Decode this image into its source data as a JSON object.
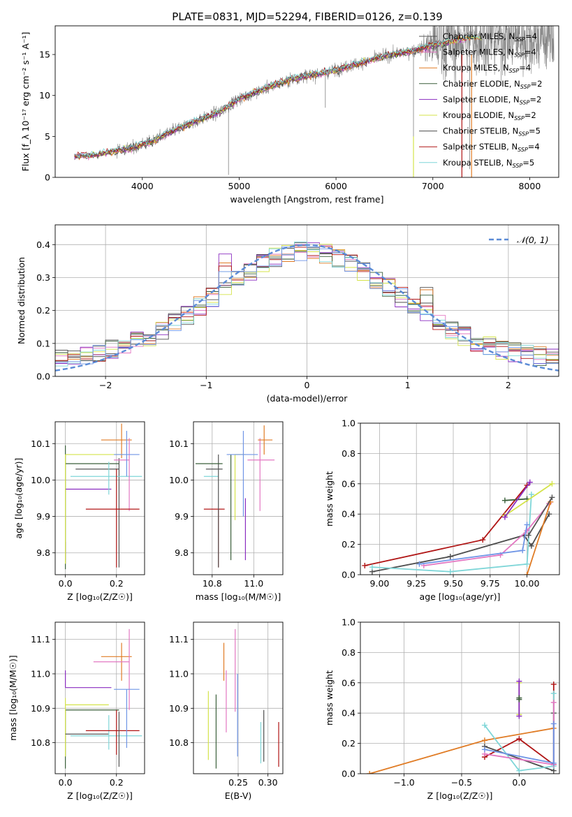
{
  "title": "PLATE=0831, MJD=52294, FIBERID=0126, z=0.139",
  "colors": {
    "Chabrier MILES": "#555555",
    "Salpeter MILES": "#e377c2",
    "Kroupa MILES": "#e07b24",
    "Chabrier ELODIE": "#3a5f3a",
    "Salpeter ELODIE": "#8a2cc0",
    "Kroupa ELODIE": "#d4e34a",
    "Chabrier STELIB": "#4d4d4d",
    "Salpeter STELIB": "#b01515",
    "Kroupa STELIB": "#7fd6d8",
    "blue": "#6f95e6",
    "data": "#808080",
    "gauss": "#5b8bd6"
  },
  "chart_data": [
    {
      "id": "spectrum",
      "type": "line",
      "xlabel": "wavelength [Angstrom, rest frame]",
      "ylabel": "Flux [f_λ 10⁻¹⁷ erg cm⁻² s⁻¹ A⁻¹]",
      "xlim": [
        3100,
        8300
      ],
      "ylim": [
        0,
        18.5
      ],
      "xticks": [
        4000,
        5000,
        6000,
        7000,
        8000
      ],
      "yticks": [
        0,
        5,
        10,
        15
      ],
      "grid": false,
      "legend_position": "top-right",
      "legend": [
        {
          "name": "Chabrier MILES",
          "label": "Chabrier MILES, N",
          "sub": "SSP",
          "value": "=4"
        },
        {
          "name": "Salpeter MILES",
          "label": "Salpeter MILES, N",
          "sub": "SSP",
          "value": "=4"
        },
        {
          "name": "Kroupa MILES",
          "label": "Kroupa MILES, N",
          "sub": "SSP",
          "value": "=4"
        },
        {
          "name": "Chabrier ELODIE",
          "label": "Chabrier ELODIE, N",
          "sub": "SSP",
          "value": "=2"
        },
        {
          "name": "Salpeter ELODIE",
          "label": "Salpeter ELODIE, N",
          "sub": "SSP",
          "value": "=2"
        },
        {
          "name": "Kroupa ELODIE",
          "label": "Kroupa ELODIE, N",
          "sub": "SSP",
          "value": "=2"
        },
        {
          "name": "Chabrier STELIB",
          "label": "Chabrier STELIB, N",
          "sub": "SSP",
          "value": "=5"
        },
        {
          "name": "Salpeter STELIB",
          "label": "Salpeter STELIB, N",
          "sub": "SSP",
          "value": "=4"
        },
        {
          "name": "Kroupa STELIB",
          "label": "Kroupa STELIB, N",
          "sub": "SSP",
          "value": "=5"
        }
      ],
      "continuum": {
        "x": [
          3300,
          3500,
          3700,
          3900,
          4100,
          4300,
          4500,
          4800,
          5000,
          5300,
          5600,
          5900,
          6200,
          6500,
          6800,
          7100,
          7400
        ],
        "y": [
          2.6,
          2.7,
          3.2,
          3.6,
          4.4,
          5.6,
          6.6,
          8.0,
          9.6,
          11.0,
          12.2,
          12.8,
          13.8,
          14.8,
          15.5,
          16.4,
          17.0
        ]
      },
      "data_series": "observed spectrum (gray)",
      "models_start": 3300
    },
    {
      "id": "residuals",
      "type": "histogram",
      "xlabel": "(data-model)/error",
      "ylabel": "Normed distribution",
      "xlim": [
        -2.5,
        2.5
      ],
      "ylim": [
        0,
        0.46
      ],
      "xticks": [
        -2,
        -1,
        0,
        1,
        2
      ],
      "yticks": [
        0.0,
        0.1,
        0.2,
        0.3,
        0.4
      ],
      "grid": true,
      "bins": 40,
      "gauss_label": "𝒩(0, 1)",
      "legend_position": "top-right"
    },
    {
      "id": "age-vs-Z",
      "type": "errorbar",
      "xlabel": "Z [log₁₀(Z/Z☉)]",
      "ylabel": "age  [log₁₀(age/yr)]",
      "xlim": [
        -0.04,
        0.31
      ],
      "ylim": [
        9.74,
        10.16
      ],
      "xticks": [
        0.0,
        0.2
      ],
      "yticks": [
        9.8,
        9.9,
        10.0,
        10.1
      ],
      "grid": true,
      "points": [
        {
          "c": "Salpeter ELODIE",
          "x": 0.0,
          "xerr": [
            0.0,
            0.0
          ],
          "y": 9.8,
          "yerr": [
            0.02,
            0.03
          ]
        },
        {
          "c": "Salpeter ELODIE",
          "x": 0.0,
          "xerr": [
            0.0,
            0.18
          ],
          "y": 9.975,
          "yerr": [
            0.0,
            0.0
          ]
        },
        {
          "c": "Chabrier ELODIE",
          "x": 0.0,
          "xerr": [
            0.0,
            0.21
          ],
          "y": 10.045,
          "yerr": [
            0.29,
            0.05
          ]
        },
        {
          "c": "Kroupa ELODIE",
          "x": 0.0,
          "xerr": [
            0.0,
            0.23
          ],
          "y": 10.07,
          "yerr": [
            0.3,
            0.0
          ]
        },
        {
          "c": "Chabrier MILES",
          "x": 0.21,
          "xerr": [
            0.17,
            0.0
          ],
          "y": 10.03,
          "yerr": [
            0.27,
            0.03
          ]
        },
        {
          "c": "Kroupa STELIB",
          "x": 0.17,
          "xerr": [
            0.15,
            0.13
          ],
          "y": 10.01,
          "yerr": [
            0.05,
            0.04
          ]
        },
        {
          "c": "Kroupa MILES",
          "x": 0.22,
          "xerr": [
            0.08,
            0.04
          ],
          "y": 10.11,
          "yerr": [
            0.05,
            0.045
          ]
        },
        {
          "c": "Salpeter MILES",
          "x": 0.25,
          "xerr": [
            0.06,
            0.0
          ],
          "y": 10.055,
          "yerr": [
            0.14,
            0.06
          ]
        },
        {
          "c": "blue",
          "x": 0.24,
          "xerr": [
            0.05,
            0.05
          ],
          "y": 10.07,
          "yerr": [
            0.06,
            0.065
          ]
        },
        {
          "c": "Salpeter STELIB",
          "x": 0.2,
          "xerr": [
            0.12,
            0.09
          ],
          "y": 9.92,
          "yerr": [
            0.16,
            0.11
          ]
        }
      ]
    },
    {
      "id": "age-vs-mass",
      "type": "errorbar",
      "xlabel": "mass [log₁₀(M/M☉)]",
      "ylabel": "",
      "xlim": [
        10.71,
        11.14
      ],
      "ylim": [
        9.74,
        10.16
      ],
      "xticks": [
        10.8,
        11.0
      ],
      "yticks": [
        9.8,
        9.9,
        10.0,
        10.1
      ],
      "grid": true,
      "points": [
        {
          "c": "Salpeter STELIB",
          "x": 10.83,
          "xerr": [
            0.07,
            0.03
          ],
          "y": 9.92,
          "yerr": [
            0.16,
            0.0
          ]
        },
        {
          "c": "Kroupa STELIB",
          "x": 10.82,
          "xerr": [
            0.06,
            0.01
          ],
          "y": 10.01,
          "yerr": [
            0.0,
            0.0
          ]
        },
        {
          "c": "Chabrier MILES",
          "x": 10.83,
          "xerr": [
            0.06,
            0.02
          ],
          "y": 10.03,
          "yerr": [
            0.27,
            0.04
          ]
        },
        {
          "c": "Chabrier ELODIE",
          "x": 10.85,
          "xerr": [
            0.13,
            0.0
          ],
          "y": 10.045,
          "yerr": [
            0.0,
            0.0
          ]
        },
        {
          "c": "Kroupa ELODIE",
          "x": 10.91,
          "xerr": [
            0.0,
            0.05
          ],
          "y": 10.07,
          "yerr": [
            0.18,
            0.0
          ]
        },
        {
          "c": "Chabrier ELODIE",
          "x": 10.89,
          "xerr": [
            0.0,
            0.0
          ],
          "y": 10.0,
          "yerr": [
            0.22,
            0.07
          ]
        },
        {
          "c": "blue",
          "x": 10.95,
          "xerr": [
            0.08,
            0.07
          ],
          "y": 10.07,
          "yerr": [
            0.17,
            0.065
          ]
        },
        {
          "c": "Salpeter ELODIE",
          "x": 10.96,
          "xerr": [
            0.0,
            0.0
          ],
          "y": 9.95,
          "yerr": [
            0.17,
            0.0
          ]
        },
        {
          "c": "Salpeter MILES",
          "x": 11.03,
          "xerr": [
            0.06,
            0.07
          ],
          "y": 10.055,
          "yerr": [
            0.14,
            0.06
          ]
        },
        {
          "c": "Kroupa MILES",
          "x": 11.05,
          "xerr": [
            0.03,
            0.04
          ],
          "y": 10.11,
          "yerr": [
            0.04,
            0.04
          ]
        }
      ]
    },
    {
      "id": "weight-vs-age",
      "type": "line",
      "xlabel": "age  [log₁₀(age/yr)]",
      "ylabel": "mass weight",
      "xlim": [
        8.87,
        10.22
      ],
      "ylim": [
        0,
        1.0
      ],
      "xticks": [
        9.0,
        9.25,
        9.5,
        9.75,
        10.0
      ],
      "yticks": [
        0.0,
        0.2,
        0.4,
        0.6,
        0.8,
        1.0
      ],
      "grid": true,
      "series": [
        {
          "c": "Salpeter STELIB",
          "x": [
            8.9,
            9.7,
            10.0
          ],
          "y": [
            0.06,
            0.23,
            0.59
          ]
        },
        {
          "c": "Chabrier STELIB",
          "x": [
            8.95,
            9.48,
            9.98,
            10.03,
            10.15
          ],
          "y": [
            0.02,
            0.12,
            0.26,
            0.19,
            0.4
          ]
        },
        {
          "c": "Kroupa STELIB",
          "x": [
            8.95,
            9.48,
            10.0,
            10.03
          ],
          "y": [
            0.05,
            0.02,
            0.07,
            0.53
          ]
        },
        {
          "c": "Salpeter MILES",
          "x": [
            9.3,
            9.82,
            10.0,
            10.15
          ],
          "y": [
            0.06,
            0.13,
            0.29,
            0.47
          ]
        },
        {
          "c": "Kroupa MILES",
          "x": [
            10.0,
            10.16
          ],
          "y": [
            0.0,
            0.48
          ]
        },
        {
          "c": "Chabrier MILES",
          "x": [
            10.01,
            10.17
          ],
          "y": [
            0.26,
            0.51
          ]
        },
        {
          "c": "Chabrier ELODIE",
          "x": [
            9.85,
            10.0
          ],
          "y": [
            0.49,
            0.5
          ]
        },
        {
          "c": "Kroupa ELODIE",
          "x": [
            9.85,
            10.17
          ],
          "y": [
            0.39,
            0.6
          ]
        },
        {
          "c": "Salpeter ELODIE",
          "x": [
            9.85,
            10.02
          ],
          "y": [
            0.38,
            0.61
          ]
        },
        {
          "c": "blue",
          "x": [
            9.27,
            9.97,
            10.0
          ],
          "y": [
            0.07,
            0.16,
            0.33
          ]
        }
      ]
    },
    {
      "id": "mass-vs-Z",
      "type": "errorbar",
      "xlabel": "Z [log₁₀(Z/Z☉)]",
      "ylabel": "mass [log₁₀(M/M☉)]",
      "xlim": [
        -0.04,
        0.31
      ],
      "ylim": [
        10.71,
        11.15
      ],
      "xticks": [
        0.0,
        0.2
      ],
      "yticks": [
        10.8,
        10.9,
        11.0,
        11.1
      ],
      "grid": true,
      "points": [
        {
          "c": "Salpeter ELODIE",
          "x": 0.0,
          "xerr": [
            0.0,
            0.18
          ],
          "y": 10.96,
          "yerr": [
            0.0,
            0.05
          ]
        },
        {
          "c": "Kroupa ELODIE",
          "x": 0.0,
          "xerr": [
            0.0,
            0.17
          ],
          "y": 10.91,
          "yerr": [
            0.0,
            0.0
          ]
        },
        {
          "c": "Chabrier ELODIE",
          "x": 0.0,
          "xerr": [
            0.0,
            0.21
          ],
          "y": 10.895,
          "yerr": [
            0.17,
            0.0
          ]
        },
        {
          "c": "Kroupa ELODIE",
          "x": 0.0,
          "xerr": [
            0.0,
            0.0
          ],
          "y": 10.85,
          "yerr": [
            0.09,
            0.08
          ]
        },
        {
          "c": "Chabrier MILES",
          "x": 0.17,
          "xerr": [
            0.17,
            0.0
          ],
          "y": 10.825,
          "yerr": [
            0.0,
            0.0
          ]
        },
        {
          "c": "Kroupa STELIB",
          "x": 0.17,
          "xerr": [
            0.15,
            0.13
          ],
          "y": 10.82,
          "yerr": [
            0.04,
            0.06
          ]
        },
        {
          "c": "Salpeter STELIB",
          "x": 0.2,
          "xerr": [
            0.12,
            0.09
          ],
          "y": 10.835,
          "yerr": [
            0.07,
            0.06
          ]
        },
        {
          "c": "Kroupa MILES",
          "x": 0.22,
          "xerr": [
            0.08,
            0.04
          ],
          "y": 11.05,
          "yerr": [
            0.07,
            0.04
          ]
        },
        {
          "c": "Salpeter MILES",
          "x": 0.25,
          "xerr": [
            0.14,
            0.0
          ],
          "y": 11.035,
          "yerr": [
            0.14,
            0.095
          ]
        },
        {
          "c": "blue",
          "x": 0.24,
          "xerr": [
            0.05,
            0.05
          ],
          "y": 10.955,
          "yerr": [
            0.17,
            0.0
          ]
        },
        {
          "c": "Chabrier MILES",
          "x": 0.21,
          "xerr": [
            0.0,
            0.0
          ],
          "y": 10.8,
          "yerr": [
            0.07,
            0.09
          ]
        }
      ]
    },
    {
      "id": "mass-vs-EBV",
      "type": "errorbar",
      "xlabel": "E(B-V)",
      "ylabel": "",
      "xlim": [
        0.175,
        0.325
      ],
      "ylim": [
        10.71,
        11.15
      ],
      "xticks": [
        0.25,
        0.3
      ],
      "yticks": [
        10.8,
        10.9,
        11.0,
        11.1
      ],
      "grid": true,
      "points": [
        {
          "c": "Kroupa ELODIE",
          "x": 0.2,
          "y": 10.85,
          "yerr": [
            0.1,
            0.1
          ]
        },
        {
          "c": "Chabrier ELODIE",
          "x": 0.213,
          "y": 10.835,
          "yerr": [
            0.11,
            0.105
          ]
        },
        {
          "c": "Kroupa MILES",
          "x": 0.226,
          "y": 11.035,
          "yerr": [
            0.055,
            0.055
          ]
        },
        {
          "c": "Salpeter MILES",
          "x": 0.23,
          "y": 10.92,
          "yerr": [
            0.09,
            0.09
          ]
        },
        {
          "c": "Salpeter MILES",
          "x": 0.245,
          "y": 11.01,
          "yerr": [
            0.12,
            0.12
          ]
        },
        {
          "c": "blue",
          "x": 0.249,
          "y": 10.88,
          "yerr": [
            0.12,
            0.12
          ]
        },
        {
          "c": "Kroupa STELIB",
          "x": 0.288,
          "y": 10.8,
          "yerr": [
            0.06,
            0.06
          ]
        },
        {
          "c": "Chabrier STELIB",
          "x": 0.293,
          "y": 10.82,
          "yerr": [
            0.075,
            0.075
          ]
        },
        {
          "c": "Salpeter STELIB",
          "x": 0.318,
          "y": 10.795,
          "yerr": [
            0.065,
            0.065
          ]
        }
      ]
    },
    {
      "id": "weight-vs-Z",
      "type": "line",
      "xlabel": "Z [log₁₀(Z/Z☉)]",
      "ylabel": "mass weight",
      "xlim": [
        -1.38,
        0.35
      ],
      "ylim": [
        0,
        1.0
      ],
      "xticks": [
        -1.0,
        -0.5,
        0.0
      ],
      "yticks": [
        0.0,
        0.2,
        0.4,
        0.6,
        0.8,
        1.0
      ],
      "grid": true,
      "series": [
        {
          "c": "Kroupa MILES",
          "x": [
            -1.3,
            -0.3,
            0.3
          ],
          "y": [
            0.0,
            0.22,
            0.3
          ]
        },
        {
          "c": "Salpeter STELIB",
          "x": [
            -0.3,
            0.0,
            0.3,
            0.3
          ],
          "y": [
            0.11,
            0.23,
            0.06,
            0.59
          ]
        },
        {
          "c": "Chabrier STELIB",
          "x": [
            -0.3,
            0.3,
            0.3
          ],
          "y": [
            0.18,
            0.02,
            0.4
          ]
        },
        {
          "c": "Kroupa STELIB",
          "x": [
            -0.3,
            0.0,
            0.3,
            0.3
          ],
          "y": [
            0.32,
            0.02,
            0.05,
            0.53
          ]
        },
        {
          "c": "Salpeter MILES",
          "x": [
            -0.3,
            0.3,
            0.3
          ],
          "y": [
            0.13,
            0.06,
            0.47
          ]
        },
        {
          "c": "blue",
          "x": [
            -0.3,
            0.3,
            0.3
          ],
          "y": [
            0.16,
            0.07,
            0.33
          ]
        },
        {
          "c": "Kroupa ELODIE",
          "x": [
            0.0,
            0.0
          ],
          "y": [
            0.39,
            0.6
          ]
        },
        {
          "c": "Salpeter ELODIE",
          "x": [
            0.0,
            0.0
          ],
          "y": [
            0.38,
            0.61
          ]
        },
        {
          "c": "Chabrier ELODIE",
          "x": [
            0.0,
            0.0
          ],
          "y": [
            0.49,
            0.5
          ]
        }
      ]
    }
  ]
}
